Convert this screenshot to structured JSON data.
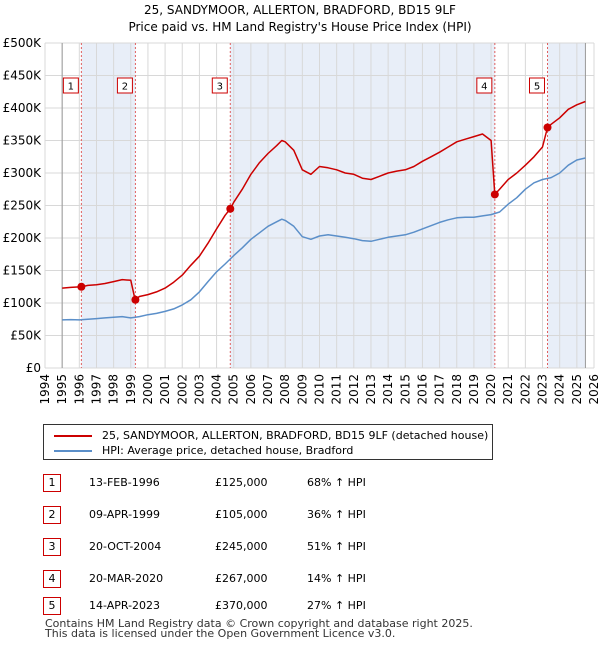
{
  "chart_data": {
    "type": "line",
    "title": "25, SANDYMOOR, ALLERTON, BRADFORD, BD15 9LF",
    "subtitle": "Price paid vs. HM Land Registry's House Price Index (HPI)",
    "xlim": [
      1994,
      2026
    ],
    "ylim": [
      0,
      500000
    ],
    "x_ticks": [
      "1994",
      "1995",
      "1996",
      "1997",
      "1998",
      "1999",
      "2000",
      "2001",
      "2002",
      "2003",
      "2004",
      "2005",
      "2006",
      "2007",
      "2008",
      "2009",
      "2010",
      "2011",
      "2012",
      "2013",
      "2014",
      "2015",
      "2016",
      "2017",
      "2018",
      "2019",
      "2020",
      "2021",
      "2022",
      "2023",
      "2024",
      "2025",
      "2026"
    ],
    "y_ticks": [
      {
        "value": 0,
        "label": "£0"
      },
      {
        "value": 50000,
        "label": "£50K"
      },
      {
        "value": 100000,
        "label": "£100K"
      },
      {
        "value": 150000,
        "label": "£150K"
      },
      {
        "value": 200000,
        "label": "£200K"
      },
      {
        "value": 250000,
        "label": "£250K"
      },
      {
        "value": 300000,
        "label": "£300K"
      },
      {
        "value": 350000,
        "label": "£350K"
      },
      {
        "value": 400000,
        "label": "£400K"
      },
      {
        "value": 450000,
        "label": "£450K"
      },
      {
        "value": 500000,
        "label": "£500K"
      }
    ],
    "data_start": 1995.0,
    "data_end": 2025.5,
    "series": [
      {
        "name": "25, SANDYMOOR, ALLERTON, BRADFORD, BD15 9LF (detached house)",
        "color": "#cc0000",
        "points": [
          [
            1995.0,
            123000
          ],
          [
            1995.5,
            124000
          ],
          [
            1996.12,
            125000
          ],
          [
            1996.5,
            127000
          ],
          [
            1997.0,
            128000
          ],
          [
            1997.5,
            130000
          ],
          [
            1998.0,
            133000
          ],
          [
            1998.5,
            136000
          ],
          [
            1999.0,
            135000
          ],
          [
            1999.25,
            105000
          ],
          [
            1999.5,
            110000
          ],
          [
            2000.0,
            113000
          ],
          [
            2000.5,
            117000
          ],
          [
            2001.0,
            123000
          ],
          [
            2001.5,
            132000
          ],
          [
            2002.0,
            143000
          ],
          [
            2002.5,
            158000
          ],
          [
            2003.0,
            172000
          ],
          [
            2003.5,
            192000
          ],
          [
            2004.0,
            214000
          ],
          [
            2004.5,
            235000
          ],
          [
            2004.8,
            245000
          ],
          [
            2005.0,
            255000
          ],
          [
            2005.5,
            275000
          ],
          [
            2006.0,
            298000
          ],
          [
            2006.5,
            316000
          ],
          [
            2007.0,
            330000
          ],
          [
            2007.5,
            342000
          ],
          [
            2007.8,
            350000
          ],
          [
            2008.0,
            348000
          ],
          [
            2008.5,
            335000
          ],
          [
            2009.0,
            305000
          ],
          [
            2009.5,
            298000
          ],
          [
            2010.0,
            310000
          ],
          [
            2010.5,
            308000
          ],
          [
            2011.0,
            305000
          ],
          [
            2011.5,
            300000
          ],
          [
            2012.0,
            298000
          ],
          [
            2012.5,
            292000
          ],
          [
            2013.0,
            290000
          ],
          [
            2013.5,
            295000
          ],
          [
            2014.0,
            300000
          ],
          [
            2014.5,
            303000
          ],
          [
            2015.0,
            305000
          ],
          [
            2015.5,
            310000
          ],
          [
            2016.0,
            318000
          ],
          [
            2016.5,
            325000
          ],
          [
            2017.0,
            332000
          ],
          [
            2017.5,
            340000
          ],
          [
            2018.0,
            348000
          ],
          [
            2018.5,
            352000
          ],
          [
            2019.0,
            356000
          ],
          [
            2019.5,
            360000
          ],
          [
            2020.0,
            350000
          ],
          [
            2020.22,
            267000
          ],
          [
            2020.5,
            275000
          ],
          [
            2021.0,
            290000
          ],
          [
            2021.5,
            300000
          ],
          [
            2022.0,
            312000
          ],
          [
            2022.5,
            325000
          ],
          [
            2023.0,
            340000
          ],
          [
            2023.29,
            370000
          ],
          [
            2023.5,
            375000
          ],
          [
            2024.0,
            385000
          ],
          [
            2024.5,
            398000
          ],
          [
            2025.0,
            405000
          ],
          [
            2025.5,
            410000
          ]
        ]
      },
      {
        "name": "HPI: Average price, detached house, Bradford",
        "color": "#5b8fc9",
        "points": [
          [
            1995.0,
            74000
          ],
          [
            1995.5,
            74500
          ],
          [
            1996.0,
            74000
          ],
          [
            1996.5,
            75000
          ],
          [
            1997.0,
            76000
          ],
          [
            1997.5,
            77000
          ],
          [
            1998.0,
            78000
          ],
          [
            1998.5,
            79000
          ],
          [
            1999.0,
            77000
          ],
          [
            1999.5,
            79000
          ],
          [
            2000.0,
            82000
          ],
          [
            2000.5,
            84000
          ],
          [
            2001.0,
            87000
          ],
          [
            2001.5,
            91000
          ],
          [
            2002.0,
            97000
          ],
          [
            2002.5,
            105000
          ],
          [
            2003.0,
            117000
          ],
          [
            2003.5,
            133000
          ],
          [
            2004.0,
            148000
          ],
          [
            2004.5,
            160000
          ],
          [
            2005.0,
            173000
          ],
          [
            2005.5,
            185000
          ],
          [
            2006.0,
            198000
          ],
          [
            2006.5,
            208000
          ],
          [
            2007.0,
            218000
          ],
          [
            2007.5,
            225000
          ],
          [
            2007.8,
            229000
          ],
          [
            2008.0,
            227000
          ],
          [
            2008.5,
            218000
          ],
          [
            2009.0,
            202000
          ],
          [
            2009.5,
            198000
          ],
          [
            2010.0,
            203000
          ],
          [
            2010.5,
            205000
          ],
          [
            2011.0,
            203000
          ],
          [
            2011.5,
            201000
          ],
          [
            2012.0,
            199000
          ],
          [
            2012.5,
            196000
          ],
          [
            2013.0,
            195000
          ],
          [
            2013.5,
            198000
          ],
          [
            2014.0,
            201000
          ],
          [
            2014.5,
            203000
          ],
          [
            2015.0,
            205000
          ],
          [
            2015.5,
            209000
          ],
          [
            2016.0,
            214000
          ],
          [
            2016.5,
            219000
          ],
          [
            2017.0,
            224000
          ],
          [
            2017.5,
            228000
          ],
          [
            2018.0,
            231000
          ],
          [
            2018.5,
            232000
          ],
          [
            2019.0,
            232000
          ],
          [
            2019.5,
            234000
          ],
          [
            2020.0,
            236000
          ],
          [
            2020.5,
            240000
          ],
          [
            2021.0,
            252000
          ],
          [
            2021.5,
            262000
          ],
          [
            2022.0,
            275000
          ],
          [
            2022.5,
            285000
          ],
          [
            2023.0,
            290000
          ],
          [
            2023.5,
            293000
          ],
          [
            2024.0,
            300000
          ],
          [
            2024.5,
            312000
          ],
          [
            2025.0,
            320000
          ],
          [
            2025.5,
            323000
          ]
        ]
      }
    ],
    "sales": [
      {
        "num": "1",
        "x": 1996.12,
        "price": 125000
      },
      {
        "num": "2",
        "x": 1999.27,
        "price": 105000
      },
      {
        "num": "3",
        "x": 2004.8,
        "price": 245000
      },
      {
        "num": "4",
        "x": 2020.22,
        "price": 267000
      },
      {
        "num": "5",
        "x": 2023.29,
        "price": 370000
      }
    ],
    "shaded_spans": [
      [
        1996.12,
        1999.27
      ],
      [
        2004.8,
        2020.22
      ],
      [
        2023.29,
        2025.5
      ]
    ]
  },
  "legend": {
    "property_label": "25, SANDYMOOR, ALLERTON, BRADFORD, BD15 9LF (detached house)",
    "hpi_label": "HPI: Average price, detached house, Bradford",
    "property_color": "#cc0000",
    "hpi_color": "#5b8fc9"
  },
  "transactions": [
    {
      "num": "1",
      "date": "13-FEB-1996",
      "price": "£125,000",
      "hpi": "68% ↑ HPI"
    },
    {
      "num": "2",
      "date": "09-APR-1999",
      "price": "£105,000",
      "hpi": "36% ↑ HPI"
    },
    {
      "num": "3",
      "date": "20-OCT-2004",
      "price": "£245,000",
      "hpi": "51% ↑ HPI"
    },
    {
      "num": "4",
      "date": "20-MAR-2020",
      "price": "£267,000",
      "hpi": "14% ↑ HPI"
    },
    {
      "num": "5",
      "date": "14-APR-2023",
      "price": "£370,000",
      "hpi": "27% ↑ HPI"
    }
  ],
  "footer": {
    "line1": "Contains HM Land Registry data © Crown copyright and database right 2025.",
    "line2": "This data is licensed under the Open Government Licence v3.0."
  }
}
